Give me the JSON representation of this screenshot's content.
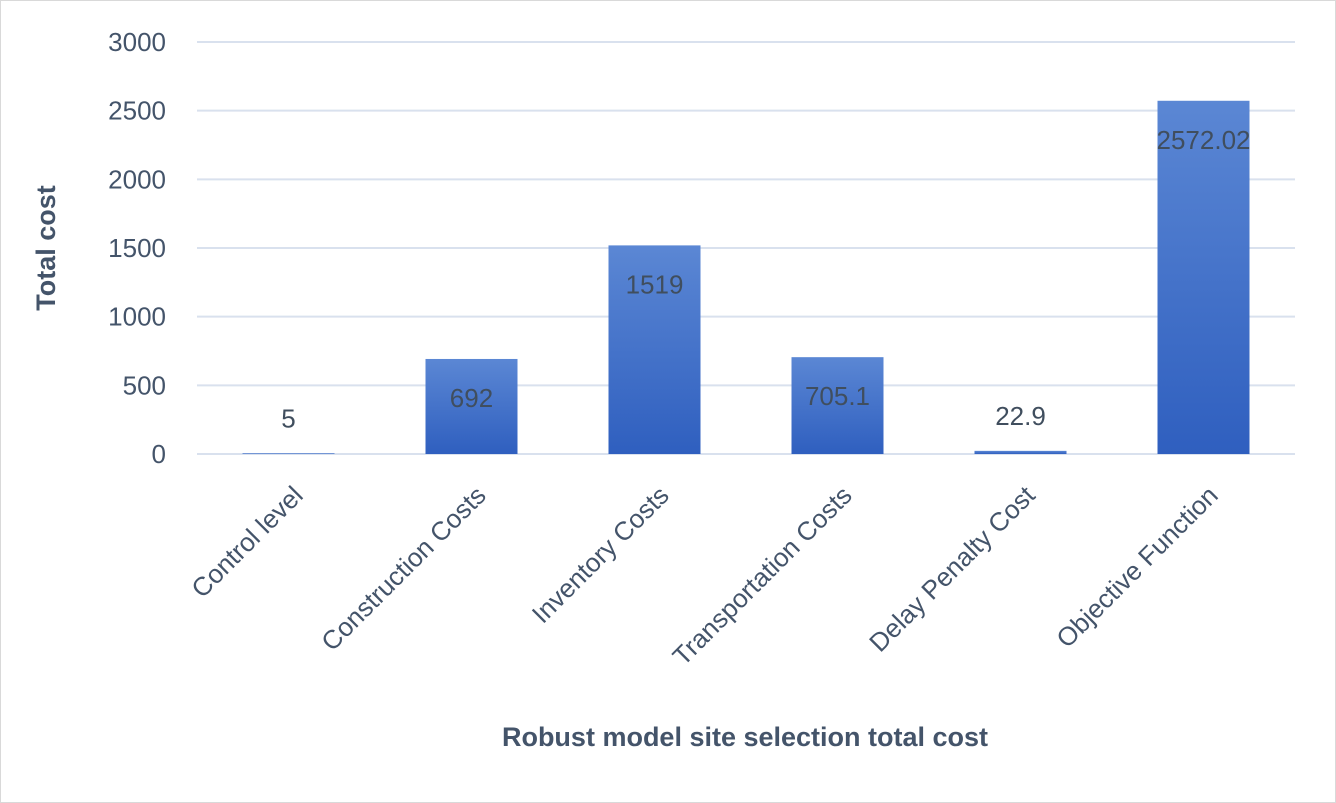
{
  "chart_data": {
    "type": "bar",
    "title": "",
    "xlabel": "Robust model site selection total cost",
    "ylabel": "Total cost",
    "categories": [
      "Control level",
      "Construction Costs",
      "Inventory Costs",
      "Transportation Costs",
      "Delay Penalty Cost",
      "Objective Function"
    ],
    "values": [
      5,
      692,
      1519,
      705.1,
      22.9,
      2572.02
    ],
    "data_labels": [
      "5",
      "692",
      "1519",
      "705.1",
      "22.9",
      "2572.02"
    ],
    "yticks": [
      "0",
      "500",
      "1000",
      "1500",
      "2000",
      "2500",
      "3000"
    ],
    "ylim": [
      0,
      3000
    ],
    "grid": true,
    "legend": "none",
    "colors": {
      "bar_top": "#5b87d4",
      "bar_bottom": "#2f5fbf",
      "grid": "#d9e1ee",
      "text": "#44546a"
    }
  }
}
